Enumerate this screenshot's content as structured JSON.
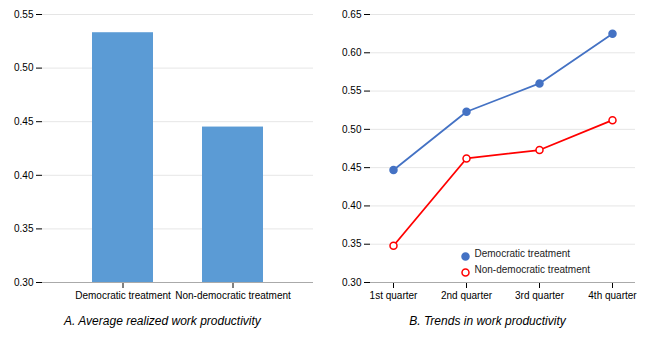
{
  "chart_data": [
    {
      "type": "bar",
      "title": "A. Average realized work productivity",
      "categories": [
        "Democratic treatment",
        "Non-democratic treatment"
      ],
      "values": [
        0.533,
        0.445
      ],
      "color": "#5B9BD5",
      "ylim": [
        0.3,
        0.55
      ],
      "yticks": [
        {
          "value": 0.3,
          "label": "0.30"
        },
        0.35,
        {
          "value": 0.4,
          "label": "0.40"
        },
        0.45,
        {
          "value": 0.5,
          "label": "0.50"
        },
        0.55
      ],
      "grid": true
    },
    {
      "type": "line",
      "title": "B. Trends in work productivity",
      "categories": [
        "1st quarter",
        "2nd quarter",
        "3rd quarter",
        "4th quarter"
      ],
      "series": [
        {
          "name": "Democratic treatment",
          "color": "#4472C4",
          "marker": "circle",
          "values": [
            0.447,
            0.523,
            0.56,
            0.625
          ]
        },
        {
          "name": "Non-democratic treatment",
          "color": "#FF0000",
          "marker": "open_circle",
          "values": [
            0.348,
            0.462,
            0.473,
            0.512
          ]
        }
      ],
      "ylim": [
        0.3,
        0.65
      ],
      "yticks": [
        {
          "value": 0.3,
          "label": "0.30"
        },
        0.35,
        {
          "value": 0.4,
          "label": "0.40"
        },
        0.45,
        {
          "value": 0.5,
          "label": "0.50"
        },
        0.55,
        {
          "value": 0.6,
          "label": "0.60"
        },
        0.65
      ],
      "grid": true,
      "legend": "lower right"
    }
  ]
}
